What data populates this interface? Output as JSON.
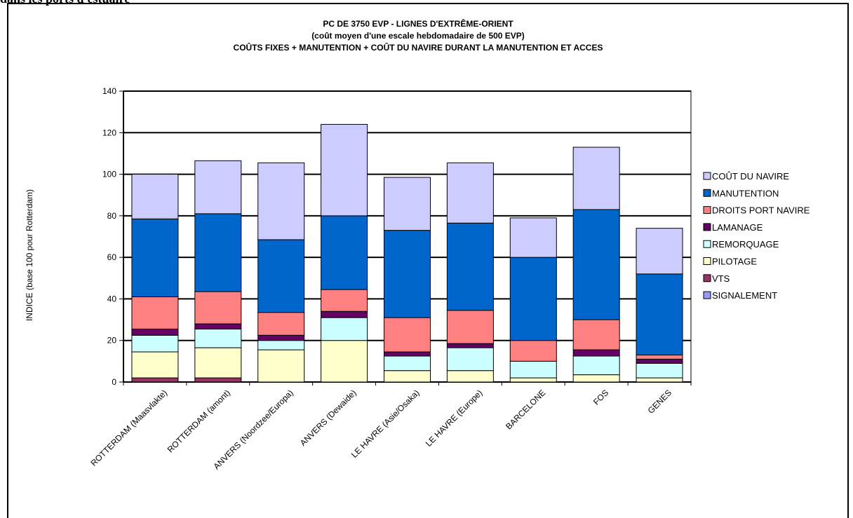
{
  "page": {
    "heading": "dans les ports d'estuaire"
  },
  "chart_data": {
    "type": "bar",
    "stacked": true,
    "title": "PC DE 3750 EVP - LIGNES D'EXTRÊME-ORIENT",
    "subtitle": "(coût moyen d'une escale hebdomadaire de 500 EVP)",
    "subtitle2": "COÛTS FIXES + MANUTENTION + COÛT DU NAVIRE DURANT LA MANUTENTION ET ACCES",
    "ylabel": "INDICE (base 100 pour Rotterdam)",
    "xlabel": "",
    "ylim": [
      0,
      140
    ],
    "yticks": [
      0,
      20,
      40,
      60,
      80,
      100,
      120,
      140
    ],
    "grid": true,
    "legend_position": "right",
    "categories": [
      "ROTTERDAM (Maasvlakte)",
      "ROTTERDAM (amont)",
      "ANVERS (Noordzee/Europa)",
      "ANVERS (Dewaide)",
      "LE HAVRE (Asie/Osaka)",
      "LE HAVRE (Europe)",
      "BARCELONE",
      "FOS",
      "GENES"
    ],
    "series": [
      {
        "name": "SIGNALEMENT",
        "color": "#9999ff",
        "values": [
          0,
          0,
          0,
          0,
          0,
          0,
          0,
          0,
          0
        ]
      },
      {
        "name": "VTS",
        "color": "#993366",
        "values": [
          2,
          2,
          0,
          0,
          0,
          0,
          0,
          0,
          0
        ]
      },
      {
        "name": "PILOTAGE",
        "color": "#ffffcc",
        "values": [
          12.5,
          14.5,
          15.5,
          20,
          5.5,
          5.5,
          2,
          3.5,
          2
        ]
      },
      {
        "name": "REMORQUAGE",
        "color": "#ccffff",
        "values": [
          8,
          9,
          4.5,
          11,
          7,
          11,
          8,
          9,
          7
        ]
      },
      {
        "name": "LAMANAGE",
        "color": "#660066",
        "values": [
          3,
          2.5,
          2.5,
          3,
          2,
          2,
          0,
          3,
          2
        ]
      },
      {
        "name": "DROITS PORT NAVIRE",
        "color": "#ff8080",
        "values": [
          15.5,
          15.5,
          11,
          10.5,
          16.5,
          16,
          10,
          14.5,
          2
        ]
      },
      {
        "name": "MANUTENTION",
        "color": "#0066cc",
        "values": [
          37.5,
          37.5,
          35,
          35.5,
          42,
          42,
          40,
          53,
          39
        ]
      },
      {
        "name": "COÛT DU NAVIRE",
        "color": "#ccccff",
        "values": [
          21.5,
          25.5,
          37,
          44,
          25.5,
          29,
          19,
          30,
          22
        ]
      }
    ],
    "legend_order": [
      "COÛT DU NAVIRE",
      "MANUTENTION",
      "DROITS PORT NAVIRE",
      "LAMANAGE",
      "REMORQUAGE",
      "PILOTAGE",
      "VTS",
      "SIGNALEMENT"
    ]
  }
}
